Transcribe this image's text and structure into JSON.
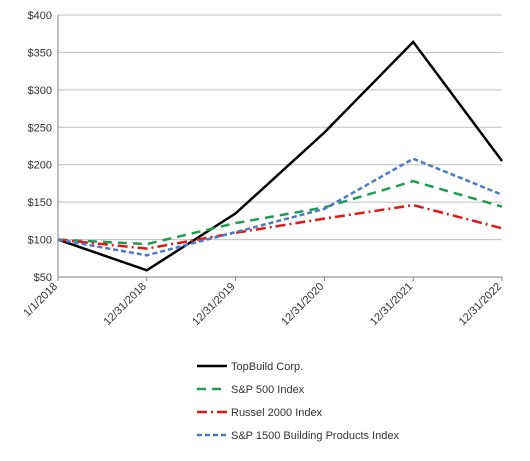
{
  "chart_data": {
    "type": "line",
    "title": "",
    "xlabel": "",
    "ylabel": "",
    "categories": [
      "1/1/2018",
      "12/31/2018",
      "12/31/2019",
      "12/31/2020",
      "12/31/2021",
      "12/31/2022"
    ],
    "y_ticks": [
      "$50",
      "$100",
      "$150",
      "$200",
      "$250",
      "$300",
      "$350",
      "$400"
    ],
    "ylim": [
      50,
      400
    ],
    "y_step": 50,
    "grid": "horizontal",
    "legend_position": "bottom",
    "series": [
      {
        "name": "TopBuild Corp.",
        "values": [
          100,
          59,
          135,
          243,
          364,
          205
        ],
        "color": "#000000",
        "style": "solid"
      },
      {
        "name": "S&P 500 Index",
        "values": [
          100,
          94,
          122,
          143,
          178,
          144
        ],
        "color": "#1f9d55",
        "style": "dashed"
      },
      {
        "name": "Russel 2000 Index",
        "values": [
          100,
          88,
          109,
          128,
          146,
          115
        ],
        "color": "#e01818",
        "style": "dashdot"
      },
      {
        "name": "S&P 1500 Building Products Index",
        "values": [
          100,
          79,
          110,
          141,
          208,
          160
        ],
        "color": "#4f79c0",
        "style": "dotted"
      }
    ]
  }
}
